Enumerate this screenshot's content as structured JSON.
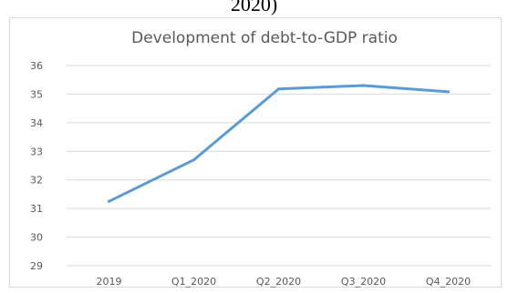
{
  "document": {
    "clipped_caption_fragment": "2020)"
  },
  "chart_data": {
    "type": "line",
    "title": "Development of debt-to-GDP ratio",
    "xlabel": "",
    "ylabel": "",
    "categories": [
      "2019",
      "Q1_2020",
      "Q2_2020",
      "Q3_2020",
      "Q4_2020"
    ],
    "series": [
      {
        "values": [
          31.25,
          32.7,
          35.18,
          35.3,
          35.08
        ],
        "color": "#5b9bd5"
      }
    ],
    "ylim": [
      29,
      36
    ],
    "yticks": [
      "29",
      "30",
      "31",
      "32",
      "33",
      "34",
      "35",
      "36"
    ],
    "grid": true,
    "legend": "none",
    "colors": {
      "grid": "#d9d9d9",
      "text": "#595959"
    }
  }
}
